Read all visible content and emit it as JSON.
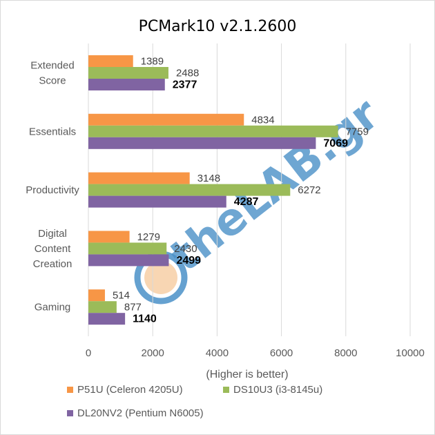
{
  "chart_data": {
    "type": "bar",
    "orientation": "horizontal",
    "title": "PCMark10 v2.1.2600",
    "xlabel": "(Higher is better)",
    "ylabel": "",
    "xlim": [
      0,
      10000
    ],
    "xticks": [
      0,
      2000,
      4000,
      6000,
      8000,
      10000
    ],
    "grid": true,
    "legend_position": "bottom",
    "categories": [
      [
        "Extended",
        "Score"
      ],
      [
        "Essentials"
      ],
      [
        "Productivity"
      ],
      [
        "Digital",
        "Content",
        "Creation"
      ],
      [
        "Gaming"
      ]
    ],
    "series": [
      {
        "name": "P51U (Celeron 4205U)",
        "color": "#f79646",
        "bold_labels": false,
        "values": [
          1389,
          4834,
          3148,
          1279,
          514
        ]
      },
      {
        "name": "DS10U3 (i3-8145u)",
        "color": "#9bbb59",
        "bold_labels": false,
        "values": [
          2488,
          7759,
          6272,
          2430,
          877
        ]
      },
      {
        "name": "DL20NV2 (Pentium N6005)",
        "color": "#8064a2",
        "bold_labels": true,
        "values": [
          2377,
          7069,
          4287,
          2499,
          1140
        ]
      }
    ]
  },
  "watermark": {
    "text": "theLAB.gr",
    "color": "#4a90c8"
  }
}
